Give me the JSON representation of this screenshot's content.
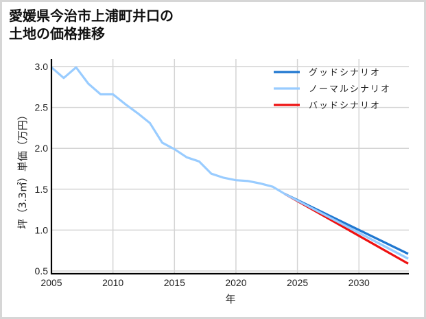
{
  "title": {
    "line1": "愛媛県今治市上浦町井口の",
    "line2": "土地の価格推移"
  },
  "chart_data": {
    "type": "line",
    "title": "愛媛県今治市上浦町井口の土地の価格推移",
    "xlabel": "年",
    "ylabel": "坪（3.3㎡）単価（万円）",
    "xlim": [
      2005,
      2034
    ],
    "ylim": [
      0.5,
      3.05
    ],
    "xticks": [
      2005,
      2010,
      2015,
      2020,
      2025,
      2030
    ],
    "yticks": [
      0.5,
      1.0,
      1.5,
      2.0,
      2.5,
      3.0
    ],
    "ytick_labels": [
      "0.5",
      "1.0",
      "1.5",
      "2.0",
      "2.5",
      "3.0"
    ],
    "grid": true,
    "legend_position": "upper right",
    "series": [
      {
        "name": "グッドシナリオ",
        "color": "#1f77d0",
        "x": [
          2024,
          2034
        ],
        "y": [
          1.44,
          0.71
        ]
      },
      {
        "name": "ノーマルシナリオ",
        "color": "#99ccff",
        "x": [
          2005,
          2006,
          2007,
          2008,
          2009,
          2010,
          2011,
          2012,
          2013,
          2014,
          2015,
          2016,
          2017,
          2018,
          2019,
          2020,
          2021,
          2022,
          2023,
          2024,
          2034
        ],
        "y": [
          2.99,
          2.86,
          2.99,
          2.79,
          2.66,
          2.66,
          2.54,
          2.43,
          2.31,
          2.07,
          1.99,
          1.89,
          1.84,
          1.69,
          1.64,
          1.61,
          1.6,
          1.57,
          1.53,
          1.44,
          0.65
        ]
      },
      {
        "name": "バッドシナリオ",
        "color": "#ee1111",
        "x": [
          2024,
          2034
        ],
        "y": [
          1.44,
          0.59
        ]
      }
    ]
  },
  "legend": {
    "items": [
      {
        "label": "グッドシナリオ",
        "color": "#1f77d0"
      },
      {
        "label": "ノーマルシナリオ",
        "color": "#99ccff"
      },
      {
        "label": "バッドシナリオ",
        "color": "#ee1111"
      }
    ]
  }
}
